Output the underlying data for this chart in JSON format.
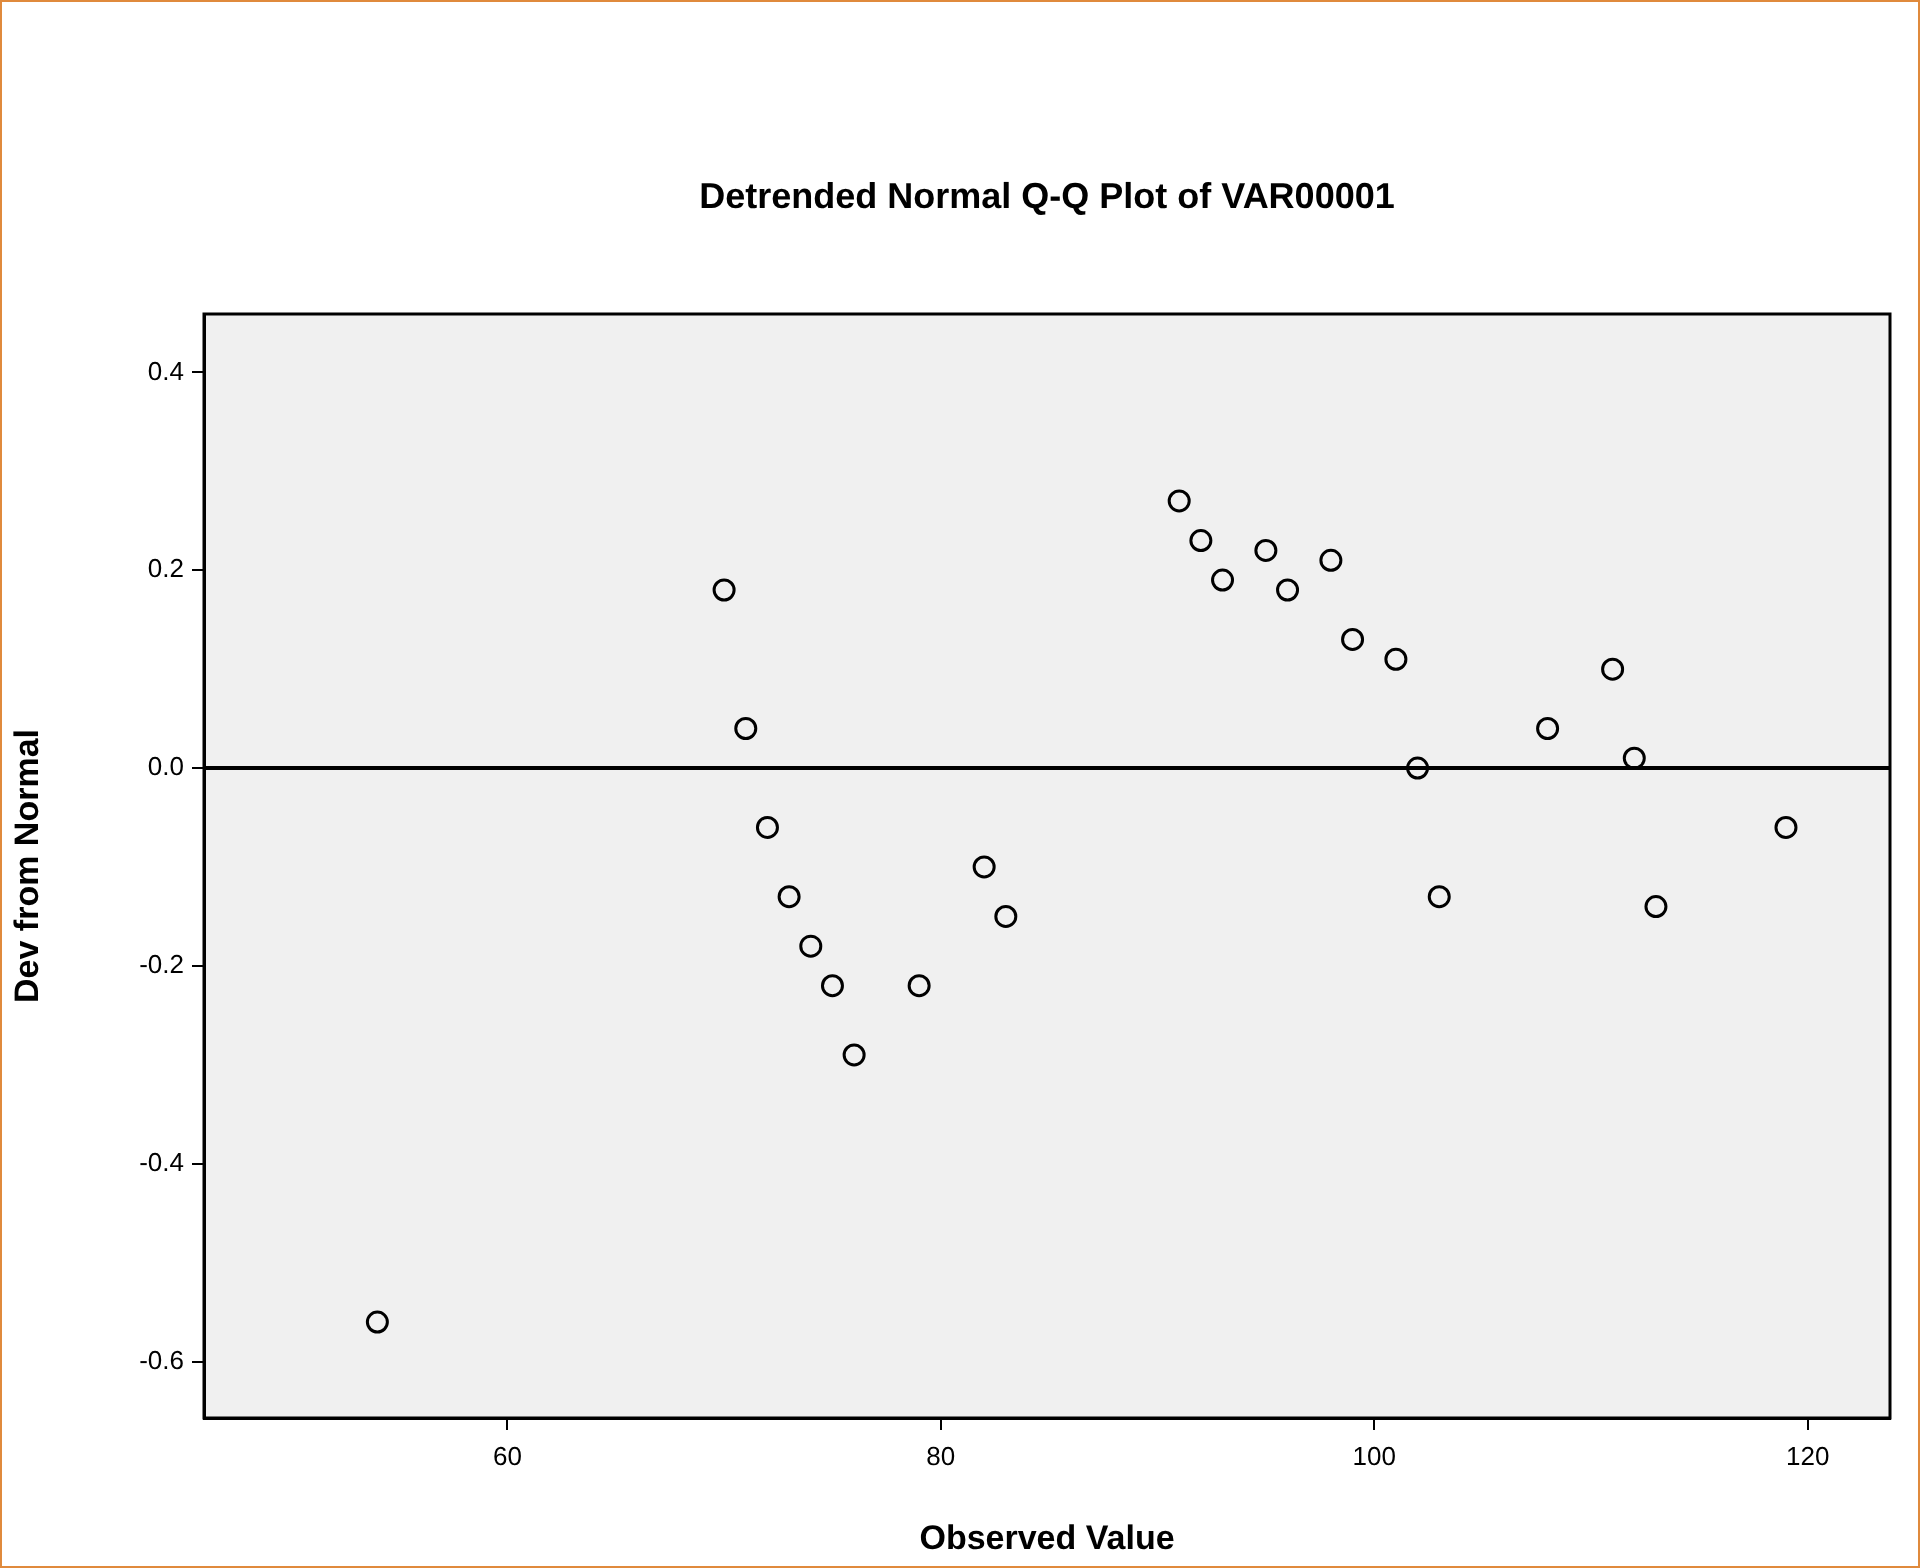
{
  "chart_data": {
    "type": "scatter",
    "title": "Detrended Normal Q-Q Plot of VAR00001",
    "xlabel": "Observed Value",
    "ylabel": "Dev from Normal",
    "x": [
      54,
      70,
      71,
      72,
      73,
      74,
      75,
      76,
      79,
      82,
      83,
      91,
      92,
      93,
      95,
      96,
      98,
      99,
      101,
      102,
      103,
      108,
      111,
      112,
      113,
      119
    ],
    "series": [
      {
        "color": "#000000",
        "values": [
          -0.56,
          0.18,
          0.04,
          -0.06,
          -0.13,
          -0.18,
          -0.22,
          -0.29,
          -0.22,
          -0.1,
          -0.15,
          0.27,
          0.23,
          0.19,
          0.22,
          0.18,
          0.21,
          0.13,
          0.11,
          0.0,
          -0.13,
          0.04,
          0.1,
          0.01,
          -0.14,
          -0.06
        ]
      }
    ],
    "xlim": [
      46,
      123.8
    ],
    "xticks": [
      60,
      80,
      100,
      120
    ],
    "ylim": [
      -0.657,
      0.459
    ],
    "yticks": [
      {
        "value": -0.6,
        "label": "-0.6"
      },
      {
        "value": -0.4,
        "label": "-0.4"
      },
      {
        "value": -0.2,
        "label": "-0.2"
      },
      {
        "value": 0,
        "label": "0.0"
      },
      {
        "value": 0.2,
        "label": "0.2"
      },
      {
        "value": 0.4,
        "label": "0.4"
      }
    ],
    "ref_lines": [
      {
        "axis": "y",
        "value": 0,
        "color": "#000000"
      }
    ],
    "grid": false,
    "legend": false,
    "marker": "circle"
  }
}
